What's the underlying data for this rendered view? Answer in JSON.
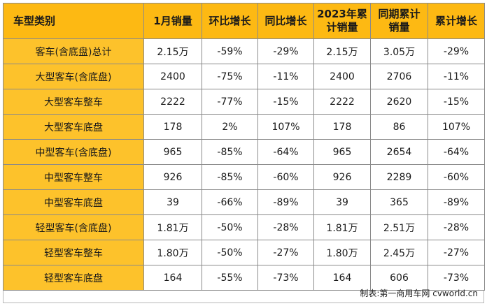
{
  "table": {
    "headers": [
      "车型类别",
      "1月销量",
      "环比增长",
      "同比增长",
      "2023年累\n计销量",
      "同期累计\n销量",
      "累计增长"
    ],
    "rows": [
      [
        "客车(含底盘)总计",
        "2.15万",
        "-59%",
        "-29%",
        "2.15万",
        "3.05万",
        "-29%"
      ],
      [
        "大型客车(含底盘)",
        "2400",
        "-75%",
        "-11%",
        "2400",
        "2706",
        "-11%"
      ],
      [
        "大型客车整车",
        "2222",
        "-77%",
        "-15%",
        "2222",
        "2620",
        "-15%"
      ],
      [
        "大型客车底盘",
        "178",
        "2%",
        "107%",
        "178",
        "86",
        "107%"
      ],
      [
        "中型客车(含底盘)",
        "965",
        "-85%",
        "-64%",
        "965",
        "2654",
        "-64%"
      ],
      [
        "中型客车整车",
        "926",
        "-85%",
        "-60%",
        "926",
        "2289",
        "-60%"
      ],
      [
        "中型客车底盘",
        "39",
        "-66%",
        "-89%",
        "39",
        "365",
        "-89%"
      ],
      [
        "轻型客车(含底盘)",
        "1.81万",
        "-50%",
        "-28%",
        "1.81万",
        "2.51万",
        "-28%"
      ],
      [
        "轻型客车整车",
        "1.80万",
        "-50%",
        "-27%",
        "1.80万",
        "2.45万",
        "-27%"
      ],
      [
        "轻型客车底盘",
        "164",
        "-55%",
        "-73%",
        "164",
        "606",
        "-73%"
      ]
    ]
  },
  "source": "制表:第一商用车网 cvworld.cn"
}
